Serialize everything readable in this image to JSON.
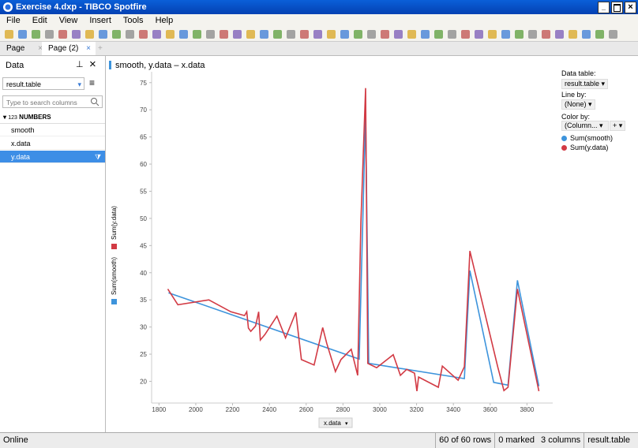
{
  "window": {
    "title": "Exercise 4.dxp - TIBCO Spotfire"
  },
  "menu": [
    "File",
    "Edit",
    "View",
    "Insert",
    "Tools",
    "Help"
  ],
  "tabs": [
    "Page",
    "Page (2)"
  ],
  "data_panel": {
    "title": "Data",
    "table": "result.table",
    "search_placeholder": "Type to search columns",
    "section_icon": "123",
    "section": "NUMBERS",
    "columns": [
      {
        "name": "smooth",
        "selected": false
      },
      {
        "name": "x.data",
        "selected": false
      },
      {
        "name": "y.data",
        "selected": true
      }
    ]
  },
  "chart_data": {
    "type": "line",
    "title": "smooth, y.data – x.data",
    "xlabel": "x.data",
    "xlim": [
      1760,
      3940
    ],
    "ylim": [
      16,
      77
    ],
    "xticks": [
      1800,
      2000,
      2200,
      2400,
      2600,
      2800,
      3000,
      3200,
      3400,
      3600,
      3800
    ],
    "yticks": [
      20,
      25,
      30,
      35,
      40,
      45,
      50,
      55,
      60,
      65,
      70,
      75
    ],
    "series": [
      {
        "name": "Sum(smooth)",
        "color": "#3d94dc",
        "x": [
          1852,
          2888,
          2923,
          2940,
          3460,
          3490,
          3619,
          3697,
          3748,
          3865
        ],
        "values": [
          36.3,
          24.1,
          69.3,
          23.3,
          20.5,
          40.4,
          19.8,
          19.3,
          38.6,
          19.1
        ]
      },
      {
        "name": "Sum(y.data)",
        "color": "#d23a44",
        "x": [
          1848,
          1903,
          2071,
          2191,
          2265,
          2277,
          2286,
          2299,
          2325,
          2342,
          2351,
          2376,
          2441,
          2488,
          2544,
          2574,
          2643,
          2690,
          2712,
          2759,
          2789,
          2845,
          2880,
          2897,
          2923,
          2935,
          2983,
          3073,
          3112,
          3146,
          3189,
          3202,
          3211,
          3318,
          3340,
          3426,
          3460,
          3490,
          3641,
          3675,
          3697,
          3748,
          3865
        ],
        "values": [
          37.0,
          34.1,
          35.0,
          32.8,
          32.1,
          32.8,
          29.8,
          29.2,
          30.2,
          32.8,
          27.6,
          28.6,
          32.0,
          28.0,
          32.7,
          24.0,
          23.0,
          29.9,
          27.0,
          21.8,
          24.0,
          25.9,
          21.1,
          49.1,
          74.0,
          23.3,
          22.5,
          24.9,
          21.1,
          22.2,
          21.5,
          18.2,
          20.8,
          18.9,
          22.8,
          20.2,
          22.7,
          44.0,
          22.7,
          18.3,
          18.9,
          37.0,
          18.2
        ]
      }
    ]
  },
  "legend_panel": {
    "data_table_label": "Data table:",
    "data_table": "result.table",
    "line_by_label": "Line by:",
    "line_by": "(None)",
    "color_by_label": "Color by:",
    "color_by": "(Column..."
  },
  "status": {
    "state": "Online",
    "rows": "60 of 60 rows",
    "marked": "0 marked",
    "columns": "3 columns",
    "table": "result.table"
  }
}
